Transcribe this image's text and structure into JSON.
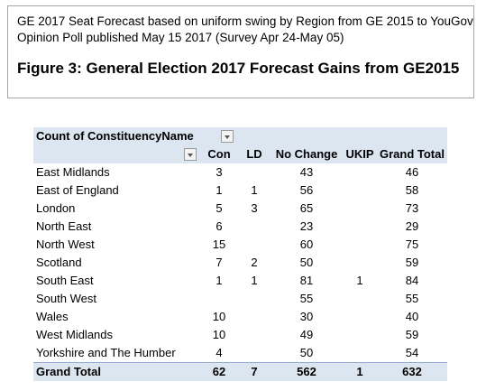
{
  "header": {
    "line1": "GE 2017 Seat Forecast based on uniform swing by Region from GE 2015  to YouGov",
    "line2": "Opinion Poll published May 15 2017  (Survey Apr 24-May 05)",
    "figure_title": "Figure 3: General Election 2017 Forecast Gains from GE2015"
  },
  "pivot": {
    "field_label": "Count of ConstituencyName",
    "columns": [
      "Con",
      "LD",
      "No Change",
      "UKIP",
      "Grand Total"
    ],
    "rows": [
      {
        "label": "East Midlands",
        "con": "3",
        "ld": "",
        "nc": "43",
        "ukip": "",
        "gt": "46"
      },
      {
        "label": "East of England",
        "con": "1",
        "ld": "1",
        "nc": "56",
        "ukip": "",
        "gt": "58"
      },
      {
        "label": "London",
        "con": "5",
        "ld": "3",
        "nc": "65",
        "ukip": "",
        "gt": "73"
      },
      {
        "label": "North East",
        "con": "6",
        "ld": "",
        "nc": "23",
        "ukip": "",
        "gt": "29"
      },
      {
        "label": "North West",
        "con": "15",
        "ld": "",
        "nc": "60",
        "ukip": "",
        "gt": "75"
      },
      {
        "label": "Scotland",
        "con": "7",
        "ld": "2",
        "nc": "50",
        "ukip": "",
        "gt": "59"
      },
      {
        "label": "South East",
        "con": "1",
        "ld": "1",
        "nc": "81",
        "ukip": "1",
        "gt": "84"
      },
      {
        "label": "South West",
        "con": "",
        "ld": "",
        "nc": "55",
        "ukip": "",
        "gt": "55"
      },
      {
        "label": "Wales",
        "con": "10",
        "ld": "",
        "nc": "30",
        "ukip": "",
        "gt": "40"
      },
      {
        "label": "West Midlands",
        "con": "10",
        "ld": "",
        "nc": "49",
        "ukip": "",
        "gt": "59"
      },
      {
        "label": "Yorkshire and The Humber",
        "con": "4",
        "ld": "",
        "nc": "50",
        "ukip": "",
        "gt": "54"
      }
    ],
    "total": {
      "label": "Grand Total",
      "con": "62",
      "ld": "7",
      "nc": "562",
      "ukip": "1",
      "gt": "632"
    }
  }
}
